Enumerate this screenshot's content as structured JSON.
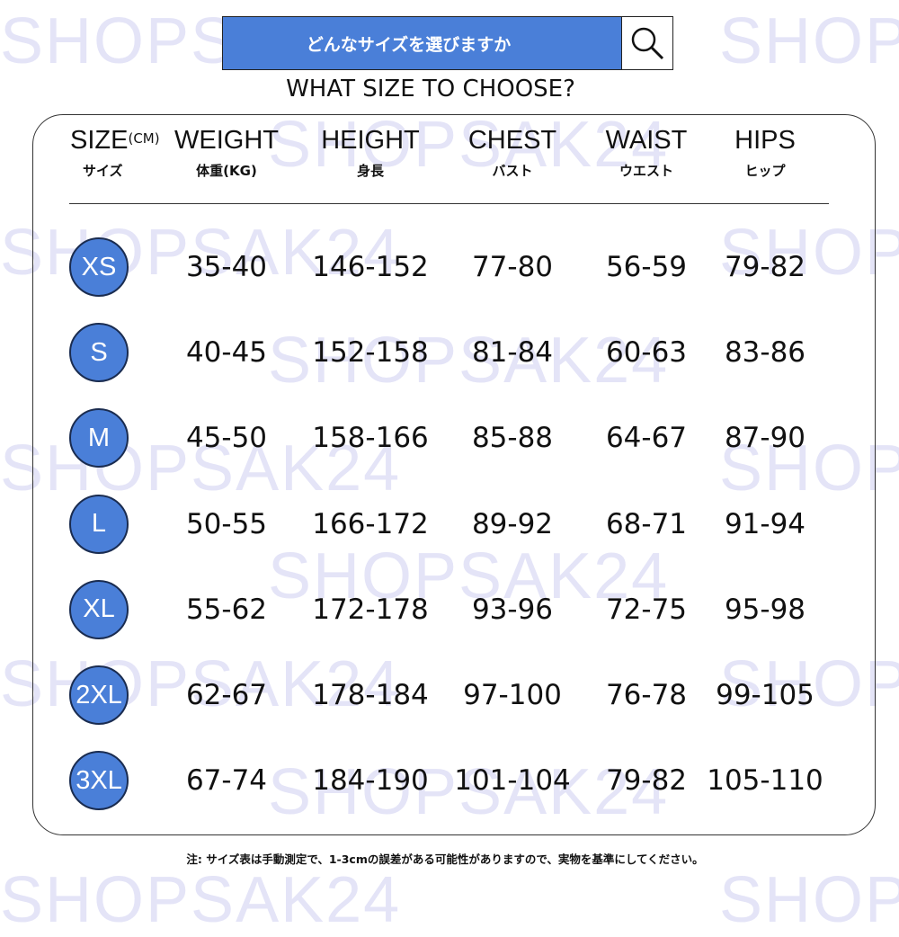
{
  "watermark": "SHOPSAK24",
  "search": {
    "text": "どんなサイズを選びますか",
    "icon": "search-icon"
  },
  "subtitle": "WHAT SIZE TO CHOOSE?",
  "headers": [
    {
      "en": "SIZE",
      "unit": "(CM)",
      "jp": "サイズ"
    },
    {
      "en": "WEIGHT",
      "jp": "体重(KG)"
    },
    {
      "en": "HEIGHT",
      "jp": "身長"
    },
    {
      "en": "CHEST",
      "jp": "バスト"
    },
    {
      "en": "WAIST",
      "jp": "ウエスト"
    },
    {
      "en": "HIPS",
      "jp": "ヒップ"
    }
  ],
  "rows": [
    {
      "size": "XS",
      "weight": "35-40",
      "height": "146-152",
      "chest": "77-80",
      "waist": "56-59",
      "hips": "79-82"
    },
    {
      "size": "S",
      "weight": "40-45",
      "height": "152-158",
      "chest": "81-84",
      "waist": "60-63",
      "hips": "83-86"
    },
    {
      "size": "M",
      "weight": "45-50",
      "height": "158-166",
      "chest": "85-88",
      "waist": "64-67",
      "hips": "87-90"
    },
    {
      "size": "L",
      "weight": "50-55",
      "height": "166-172",
      "chest": "89-92",
      "waist": "68-71",
      "hips": "91-94"
    },
    {
      "size": "XL",
      "weight": "55-62",
      "height": "172-178",
      "chest": "93-96",
      "waist": "72-75",
      "hips": "95-98"
    },
    {
      "size": "2XL",
      "weight": "62-67",
      "height": "178-184",
      "chest": "97-100",
      "waist": "76-78",
      "hips": "99-105"
    },
    {
      "size": "3XL",
      "weight": "67-74",
      "height": "184-190",
      "chest": "101-104",
      "waist": "79-82",
      "hips": "105-110"
    }
  ],
  "note": "注: サイズ表は手動測定で、1-3cmの誤差がある可能性がありますので、実物を基準にしてください。",
  "colors": {
    "accent": "#4a7fd8",
    "watermark": "#e4e4f7"
  }
}
